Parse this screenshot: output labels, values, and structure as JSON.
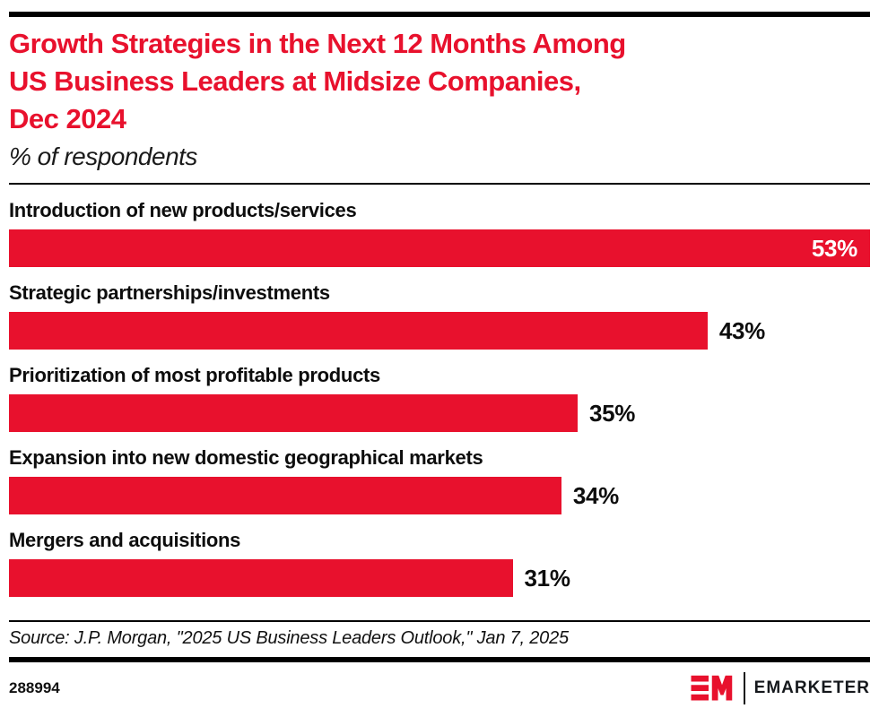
{
  "header": {
    "title_lines": [
      "Growth Strategies in the Next 12 Months Among",
      "US Business Leaders at Midsize Companies,",
      "Dec 2024"
    ],
    "subtitle": "% of respondents",
    "title_color": "#e8112d"
  },
  "chart_data": {
    "type": "bar",
    "orientation": "horizontal",
    "title": "Growth Strategies in the Next 12 Months Among US Business Leaders at Midsize Companies, Dec 2024",
    "subtitle": "% of respondents",
    "unit": "%",
    "xlim": [
      0,
      53
    ],
    "grid": false,
    "legend": "none",
    "categories": [
      "Introduction of new products/services",
      "Strategic partnerships/investments",
      "Prioritization of most profitable products",
      "Expansion into new domestic geographical markets",
      "Mergers and acquisitions"
    ],
    "values": [
      53,
      43,
      35,
      34,
      31
    ],
    "value_labels": [
      "53%",
      "43%",
      "35%",
      "34%",
      "31%"
    ],
    "value_label_positions": [
      "inside-right",
      "outside-right",
      "outside-right",
      "outside-right",
      "outside-right"
    ],
    "bar_color": "#e8112d"
  },
  "footer": {
    "source": "Source: J.P. Morgan, \"2025 US Business Leaders Outlook,\" Jan 7, 2025",
    "chart_id": "288994",
    "logo_text": "EMARKETER",
    "logo_mark_icon": "em-monogram-icon",
    "brand_red": "#e8112d"
  }
}
